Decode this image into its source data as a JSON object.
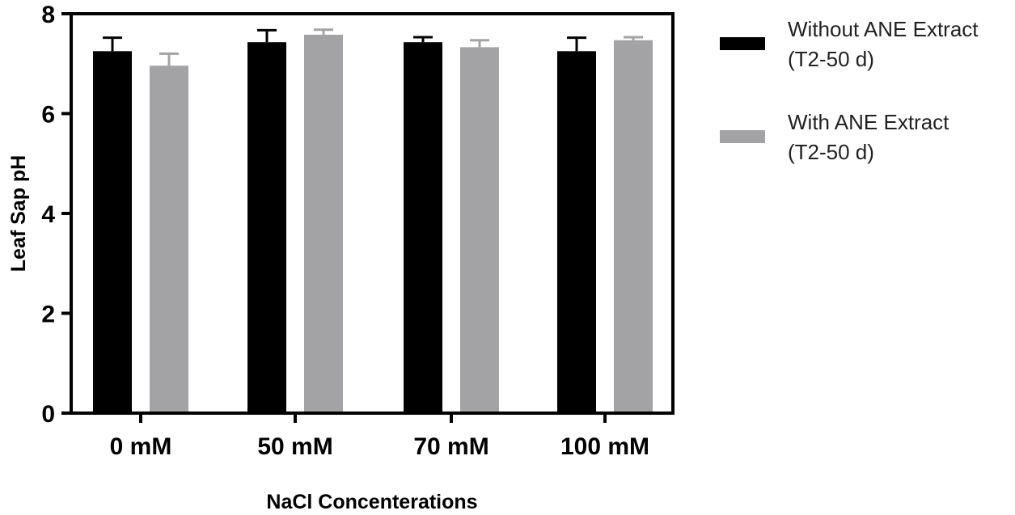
{
  "chart_data": {
    "type": "bar",
    "title": "",
    "xlabel": "NaCl Concenterations",
    "ylabel": "Leaf Sap pH",
    "categories": [
      "0 mM",
      "50 mM",
      "70 mM",
      "100 mM"
    ],
    "ylim": [
      0,
      8
    ],
    "yticks": [
      0,
      2,
      4,
      6,
      8
    ],
    "grid": false,
    "legend_position": "right",
    "series": [
      {
        "legend_lines": [
          "Without ANE Extract",
          "(T2-50 d)"
        ],
        "color": "#000000",
        "values": [
          7.25,
          7.43,
          7.43,
          7.25
        ],
        "errors": [
          0.27,
          0.24,
          0.1,
          0.27
        ]
      },
      {
        "legend_lines": [
          "With ANE Extract",
          "(T2-50 d)"
        ],
        "color": "#a3a3a6",
        "values": [
          6.96,
          7.58,
          7.33,
          7.47
        ],
        "errors": [
          0.24,
          0.1,
          0.14,
          0.06
        ]
      }
    ]
  }
}
